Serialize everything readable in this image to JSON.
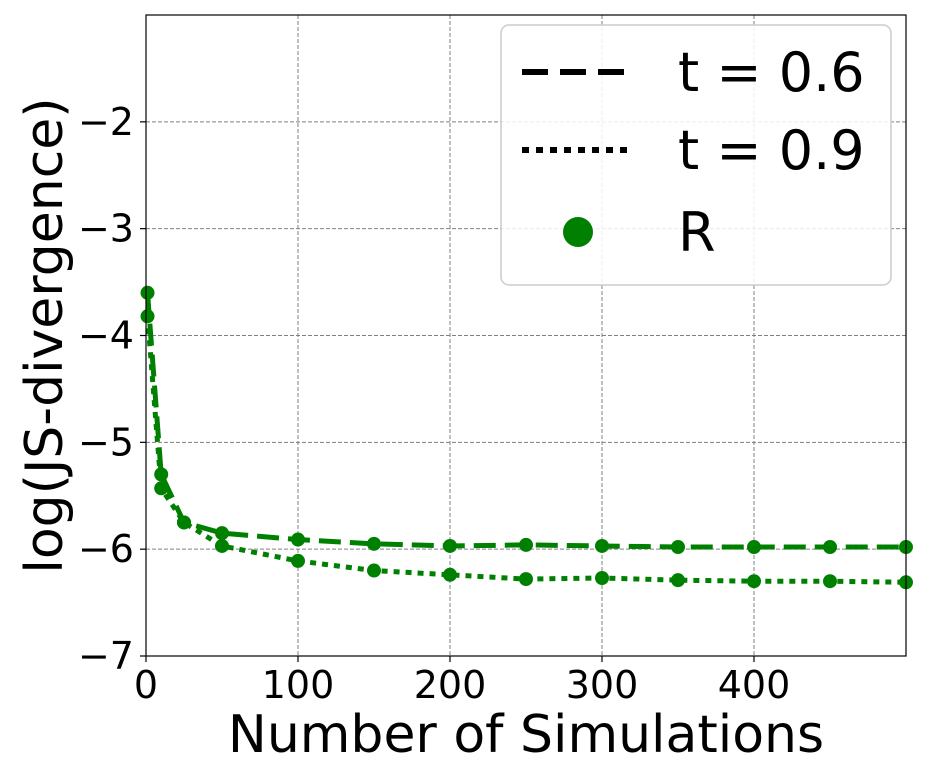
{
  "chart_data": {
    "type": "line",
    "title": "",
    "xlabel": "Number of Simulations",
    "ylabel": "log(JS-divergence)",
    "xlim": [
      0,
      500
    ],
    "ylim": [
      -7,
      -1
    ],
    "xticks": [
      0,
      100,
      200,
      300,
      400
    ],
    "xtick_labels": [
      "0",
      "100",
      "200",
      "300",
      "400"
    ],
    "yticks": [
      -7,
      -6,
      -5,
      -4,
      -3,
      -2
    ],
    "ytick_labels": [
      "−7",
      "−6",
      "−5",
      "−4",
      "−3",
      "−2"
    ],
    "grid": true,
    "legend_position": "top-right",
    "colors": {
      "series": "#008000",
      "legend_line": "#000000"
    },
    "legend": [
      {
        "label": "t = 0.6",
        "style": "dashed"
      },
      {
        "label": "t = 0.9",
        "style": "dotted"
      },
      {
        "label": "R",
        "style": "marker"
      }
    ],
    "series": [
      {
        "name": "t = 0.6",
        "linestyle": "dashed",
        "x": [
          1,
          10,
          25,
          50,
          100,
          150,
          200,
          250,
          300,
          350,
          400,
          450,
          500
        ],
        "y": [
          -3.6,
          -5.3,
          -5.75,
          -5.85,
          -5.91,
          -5.95,
          -5.97,
          -5.96,
          -5.97,
          -5.98,
          -5.98,
          -5.98,
          -5.98
        ]
      },
      {
        "name": "t = 0.9",
        "linestyle": "dotted",
        "x": [
          1,
          10,
          25,
          50,
          100,
          150,
          200,
          250,
          300,
          350,
          400,
          450,
          500
        ],
        "y": [
          -3.82,
          -5.43,
          -5.75,
          -5.97,
          -6.11,
          -6.2,
          -6.24,
          -6.28,
          -6.27,
          -6.29,
          -6.3,
          -6.3,
          -6.31
        ]
      }
    ]
  }
}
